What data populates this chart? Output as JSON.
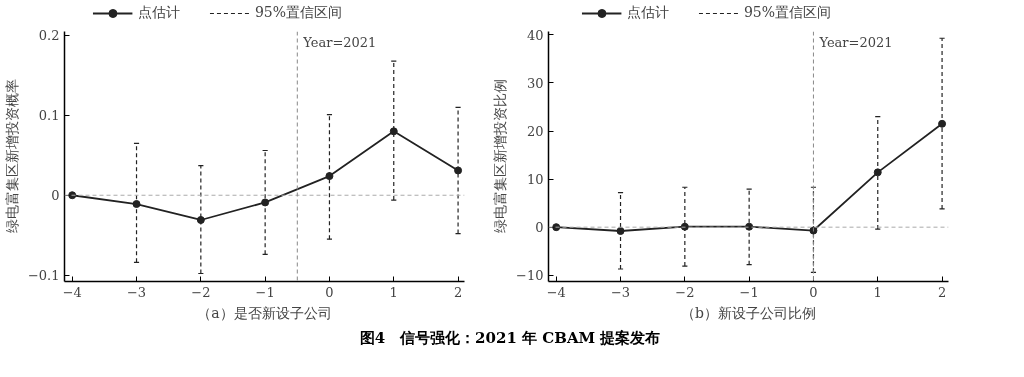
{
  "chart_data": [
    {
      "type": "line",
      "xlabel": "（a）是否新设子公司",
      "ylabel": "绿电富集区新增投资概率",
      "x": [
        -4,
        -3,
        -2,
        -1,
        0,
        1,
        2
      ],
      "series": [
        {
          "name": "点估计",
          "color": "#222222",
          "values": [
            0,
            -0.011,
            -0.031,
            -0.009,
            0.024,
            0.08,
            0.031
          ],
          "errors": [
            null,
            [
              -0.084,
              0.065
            ],
            [
              -0.098,
              0.037
            ],
            [
              -0.074,
              0.056
            ],
            [
              -0.055,
              0.101
            ],
            [
              -0.006,
              0.168
            ],
            [
              -0.048,
              0.11
            ]
          ]
        }
      ],
      "marker": "circle",
      "line_style": "solid",
      "legend": "top",
      "grid": false,
      "xlim": [
        -4.12,
        2.1
      ],
      "xticks": [
        {
          "value": -4,
          "label": "−4"
        },
        {
          "value": -3,
          "label": "−3"
        },
        {
          "value": -2,
          "label": "−2"
        },
        {
          "value": -1,
          "label": "−1"
        },
        0,
        1,
        2
      ],
      "ylim": [
        -0.108,
        0.205
      ],
      "yticks": [
        {
          "value": -0.1,
          "label": "−0.1"
        },
        0,
        0.1,
        0.2
      ],
      "ref_lines": [
        {
          "axis": "y",
          "value": 0,
          "label": null,
          "color": "#aaaaaa",
          "line_style": "dashed"
        },
        {
          "axis": "x",
          "value": -0.5,
          "color": "#888888",
          "line_style": "dashed"
        }
      ],
      "annotations": [
        "95%置信区间",
        "Year=2021",
        "图4　信号强化：2021 年 CBAM 提案发布"
      ]
    },
    {
      "type": "line",
      "xlabel": "（b）新设子公司比例",
      "ylabel": "绿电富集区新增投资比例",
      "x": [
        -4,
        -3,
        -2,
        -1,
        0,
        1,
        2
      ],
      "series": [
        {
          "name": "点估计",
          "color": "#222222",
          "values": [
            0,
            -0.8,
            0.1,
            0.1,
            -0.7,
            11.4,
            21.5
          ],
          "errors": [
            null,
            [
              -8.7,
              7.2
            ],
            [
              -8.1,
              8.3
            ],
            [
              -7.8,
              7.9
            ],
            [
              -9.4,
              8.3
            ],
            [
              -0.4,
              23.0
            ],
            [
              3.8,
              39.3
            ]
          ]
        }
      ],
      "marker": "circle",
      "line_style": "solid",
      "legend": "top",
      "grid": false,
      "xlim": [
        -4.12,
        2.1
      ],
      "xticks": [
        {
          "value": -4,
          "label": "−4"
        },
        {
          "value": -3,
          "label": "−3"
        },
        {
          "value": -2,
          "label": "−2"
        },
        {
          "value": -1,
          "label": "−1"
        },
        0,
        1,
        2
      ],
      "ylim": [
        -11.3,
        40.7
      ],
      "yticks": [
        {
          "value": -10,
          "label": "−10"
        },
        0,
        10,
        20,
        30,
        40
      ],
      "ref_lines": [
        {
          "axis": "y",
          "value": 0,
          "label": null,
          "color": "#aaaaaa",
          "line_style": "dashed"
        },
        {
          "axis": "x",
          "value": 0,
          "color": "#888888",
          "line_style": "dashed"
        }
      ],
      "annotations": [
        "95%置信区间",
        "Year=2021"
      ]
    }
  ]
}
